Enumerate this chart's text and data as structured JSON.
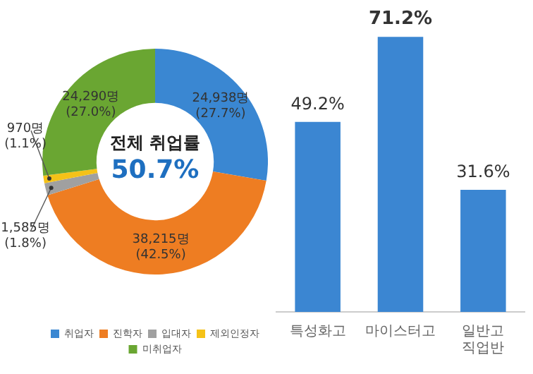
{
  "chart_data": [
    {
      "type": "donut",
      "categories": [
        "취업자",
        "진학자",
        "입대자",
        "제외인정자",
        "미취업자"
      ],
      "values": [
        24938,
        38215,
        1585,
        970,
        24290
      ],
      "colors": [
        "#3a87d2",
        "#ee7d22",
        "#a0a0a0",
        "#f5c218",
        "#6aa632"
      ],
      "value_labels": [
        "24,938명\n(27.7%)",
        "38,215명\n(42.5%)",
        "1,585명\n(1.8%)",
        "970명\n(1.1%)",
        "24,290명\n(27.0%)"
      ],
      "annotations": [
        "전체 취업률",
        "50.7%"
      ],
      "legend": "bottom"
    },
    {
      "type": "bar",
      "categories": [
        "특성화고",
        "마이스터고",
        "일반고\n직업반"
      ],
      "values": [
        49.2,
        71.2,
        31.6
      ],
      "color": "#3b86d2",
      "value_labels": [
        "49.2%",
        "71.2%",
        "31.6%"
      ],
      "legend": false
    }
  ]
}
